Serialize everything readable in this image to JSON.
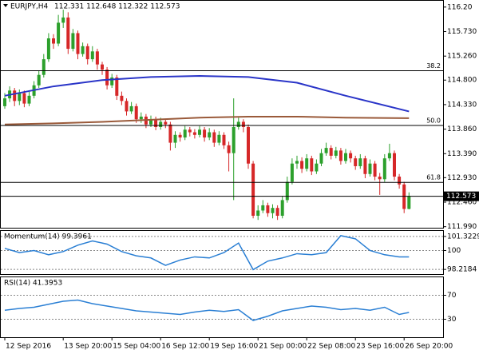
{
  "chart_data": [
    {
      "type": "candlestick",
      "title": "EURJPY,H4",
      "ohlc_text": "112.331 112.648 112.322 112.573",
      "up_color": "#2ca02c",
      "down_color": "#d62728",
      "ylim": [
        111.97,
        116.32
      ],
      "yticks": [
        {
          "value": 116.2,
          "label": "116.20"
        },
        {
          "value": 115.73,
          "label": "115.730"
        },
        {
          "value": 115.26,
          "label": "115.260"
        },
        {
          "value": 114.8,
          "label": "114.800"
        },
        {
          "value": 114.33,
          "label": "114.330"
        },
        {
          "value": 113.86,
          "label": "113.860"
        },
        {
          "value": 113.39,
          "label": "113.390"
        },
        {
          "value": 112.93,
          "label": "112.930"
        },
        {
          "value": 112.46,
          "label": "112.460"
        },
        {
          "value": 111.99,
          "label": "111.990"
        }
      ],
      "levels": [
        {
          "value": 114.98,
          "label": "38.2"
        },
        {
          "value": 113.93,
          "label": "50.0"
        },
        {
          "value": 112.84,
          "label": "61.8"
        }
      ],
      "last_price": {
        "value": 112.573,
        "label": "112.573"
      },
      "xticks": [
        {
          "value": 0,
          "label": "12 Sep 2016"
        },
        {
          "value": 12,
          "label": "13 Sep 20:00"
        },
        {
          "value": 22,
          "label": "15 Sep 04:00"
        },
        {
          "value": 32,
          "label": "16 Sep 12:00"
        },
        {
          "value": 42,
          "label": "19 Sep 16:00"
        },
        {
          "value": 52,
          "label": "21 Sep 00:00"
        },
        {
          "value": 62,
          "label": "22 Sep 08:00"
        },
        {
          "value": 72,
          "label": "23 Sep 16:00"
        },
        {
          "value": 82,
          "label": "26 Sep 20:00"
        }
      ],
      "overlays": [
        {
          "color": "#2a35c8",
          "x": [
            0,
            10,
            20,
            30,
            40,
            50,
            60,
            70,
            83
          ],
          "values": [
            114.5,
            114.68,
            114.8,
            114.86,
            114.88,
            114.86,
            114.75,
            114.5,
            114.2
          ]
        },
        {
          "color": "#9a5a3a",
          "x": [
            0,
            10,
            20,
            30,
            40,
            50,
            60,
            70,
            83
          ],
          "values": [
            113.95,
            113.97,
            114.0,
            114.04,
            114.08,
            114.1,
            114.1,
            114.08,
            114.07
          ]
        }
      ],
      "candles": [
        [
          114.3,
          114.55,
          114.25,
          114.45
        ],
        [
          114.45,
          114.68,
          114.38,
          114.6
        ],
        [
          114.6,
          114.65,
          114.3,
          114.4
        ],
        [
          114.4,
          114.62,
          114.32,
          114.55
        ],
        [
          114.55,
          114.6,
          114.28,
          114.35
        ],
        [
          114.35,
          114.58,
          114.3,
          114.5
        ],
        [
          114.5,
          114.78,
          114.45,
          114.7
        ],
        [
          114.7,
          114.98,
          114.65,
          114.9
        ],
        [
          114.9,
          115.3,
          114.85,
          115.2
        ],
        [
          115.2,
          115.7,
          115.15,
          115.6
        ],
        [
          115.6,
          115.68,
          115.4,
          115.5
        ],
        [
          115.5,
          116.05,
          115.45,
          115.9
        ],
        [
          115.9,
          116.15,
          115.8,
          116.0
        ],
        [
          116.0,
          116.1,
          115.3,
          115.4
        ],
        [
          115.4,
          115.78,
          115.35,
          115.7
        ],
        [
          115.7,
          115.75,
          115.2,
          115.3
        ],
        [
          115.3,
          115.52,
          115.25,
          115.45
        ],
        [
          115.45,
          115.5,
          115.1,
          115.2
        ],
        [
          115.2,
          115.45,
          115.15,
          115.35
        ],
        [
          115.35,
          115.4,
          115.0,
          115.1
        ],
        [
          115.1,
          115.15,
          114.9,
          115.0
        ],
        [
          115.0,
          115.05,
          114.62,
          114.7
        ],
        [
          114.7,
          114.92,
          114.65,
          114.85
        ],
        [
          114.85,
          114.9,
          114.42,
          114.5
        ],
        [
          114.5,
          114.58,
          114.32,
          114.4
        ],
        [
          114.4,
          114.45,
          114.12,
          114.2
        ],
        [
          114.2,
          114.38,
          114.15,
          114.3
        ],
        [
          114.3,
          114.35,
          113.98,
          114.05
        ],
        [
          114.05,
          114.18,
          113.98,
          114.1
        ],
        [
          114.1,
          114.15,
          113.88,
          113.95
        ],
        [
          113.95,
          114.12,
          113.9,
          114.05
        ],
        [
          114.05,
          114.1,
          113.84,
          113.9
        ],
        [
          113.9,
          114.08,
          113.85,
          114.0
        ],
        [
          114.0,
          114.05,
          113.88,
          113.95
        ],
        [
          113.95,
          114.0,
          113.45,
          113.6
        ],
        [
          113.6,
          113.82,
          113.5,
          113.75
        ],
        [
          113.75,
          113.8,
          113.62,
          113.7
        ],
        [
          113.7,
          113.92,
          113.65,
          113.85
        ],
        [
          113.85,
          113.9,
          113.72,
          113.8
        ],
        [
          113.8,
          113.86,
          113.68,
          113.75
        ],
        [
          113.75,
          113.92,
          113.7,
          113.85
        ],
        [
          113.85,
          113.9,
          113.62,
          113.7
        ],
        [
          113.7,
          113.88,
          113.65,
          113.8
        ],
        [
          113.8,
          113.85,
          113.52,
          113.6
        ],
        [
          113.6,
          113.82,
          113.55,
          113.75
        ],
        [
          113.75,
          113.8,
          113.48,
          113.55
        ],
        [
          113.55,
          113.62,
          113.05,
          113.4
        ],
        [
          113.4,
          114.45,
          112.5,
          113.9
        ],
        [
          113.9,
          114.08,
          113.85,
          114.0
        ],
        [
          114.0,
          114.05,
          113.8,
          113.9
        ],
        [
          113.9,
          113.95,
          113.1,
          113.2
        ],
        [
          113.2,
          113.25,
          112.15,
          112.2
        ],
        [
          112.2,
          112.4,
          112.12,
          112.3
        ],
        [
          112.3,
          112.5,
          112.25,
          112.4
        ],
        [
          112.4,
          112.45,
          112.18,
          112.25
        ],
        [
          112.25,
          112.42,
          112.15,
          112.35
        ],
        [
          112.35,
          112.4,
          112.12,
          112.2
        ],
        [
          112.2,
          112.58,
          112.15,
          112.5
        ],
        [
          112.5,
          112.95,
          112.45,
          112.85
        ],
        [
          112.85,
          113.3,
          112.8,
          113.2
        ],
        [
          113.2,
          113.35,
          113.1,
          113.25
        ],
        [
          113.25,
          113.32,
          113.02,
          113.1
        ],
        [
          113.1,
          113.38,
          113.05,
          113.3
        ],
        [
          113.3,
          113.35,
          112.98,
          113.05
        ],
        [
          113.05,
          113.28,
          113.0,
          113.2
        ],
        [
          113.2,
          113.48,
          113.15,
          113.4
        ],
        [
          113.4,
          113.6,
          113.35,
          113.5
        ],
        [
          113.5,
          113.55,
          113.28,
          113.35
        ],
        [
          113.35,
          113.52,
          113.3,
          113.45
        ],
        [
          113.45,
          113.5,
          113.18,
          113.25
        ],
        [
          113.25,
          113.48,
          113.2,
          113.4
        ],
        [
          113.4,
          113.45,
          113.22,
          113.3
        ],
        [
          113.3,
          113.35,
          113.08,
          113.15
        ],
        [
          113.15,
          113.38,
          113.1,
          113.3
        ],
        [
          113.3,
          113.35,
          112.92,
          113.0
        ],
        [
          113.0,
          113.28,
          112.95,
          113.2
        ],
        [
          113.2,
          113.25,
          112.88,
          112.95
        ],
        [
          112.95,
          113.02,
          112.6,
          112.9
        ],
        [
          112.9,
          113.38,
          112.85,
          113.3
        ],
        [
          113.3,
          113.58,
          113.25,
          113.4
        ],
        [
          113.4,
          113.45,
          112.88,
          112.95
        ],
        [
          112.95,
          113.0,
          112.72,
          112.8
        ],
        [
          112.8,
          112.85,
          112.25,
          112.33
        ],
        [
          112.331,
          112.648,
          112.322,
          112.573
        ]
      ]
    },
    {
      "type": "line",
      "title": "Momentum(14) 99.3961",
      "color": "#2a7fd4",
      "ylim": [
        97.78,
        101.84
      ],
      "yticks": [
        101.3229,
        100,
        98.2184
      ],
      "grid": true,
      "x": [
        0,
        3,
        6,
        9,
        12,
        15,
        18,
        21,
        24,
        27,
        30,
        33,
        36,
        39,
        42,
        45,
        48,
        51,
        54,
        57,
        60,
        63,
        66,
        69,
        72,
        75,
        78,
        81,
        83
      ],
      "values": [
        100.2,
        99.8,
        100.0,
        99.6,
        99.9,
        100.5,
        100.9,
        100.6,
        99.9,
        99.5,
        99.3,
        98.6,
        99.1,
        99.4,
        99.3,
        99.8,
        100.7,
        98.2,
        99.0,
        99.3,
        99.7,
        99.6,
        99.8,
        101.4,
        101.1,
        100.0,
        99.6,
        99.4,
        99.3961
      ]
    },
    {
      "type": "line",
      "title": "RSI(14) 41.3953",
      "color": "#2a7fd4",
      "ylim": [
        0,
        100
      ],
      "yticks": [
        70,
        30
      ],
      "grid": true,
      "x": [
        0,
        3,
        6,
        9,
        12,
        15,
        18,
        21,
        24,
        27,
        30,
        33,
        36,
        39,
        42,
        45,
        48,
        51,
        54,
        57,
        60,
        63,
        66,
        69,
        72,
        75,
        78,
        81,
        83
      ],
      "values": [
        45,
        48,
        50,
        55,
        60,
        62,
        56,
        52,
        48,
        44,
        42,
        40,
        38,
        42,
        45,
        43,
        46,
        28,
        35,
        44,
        48,
        52,
        50,
        46,
        48,
        45,
        50,
        38,
        41.3953
      ]
    }
  ]
}
